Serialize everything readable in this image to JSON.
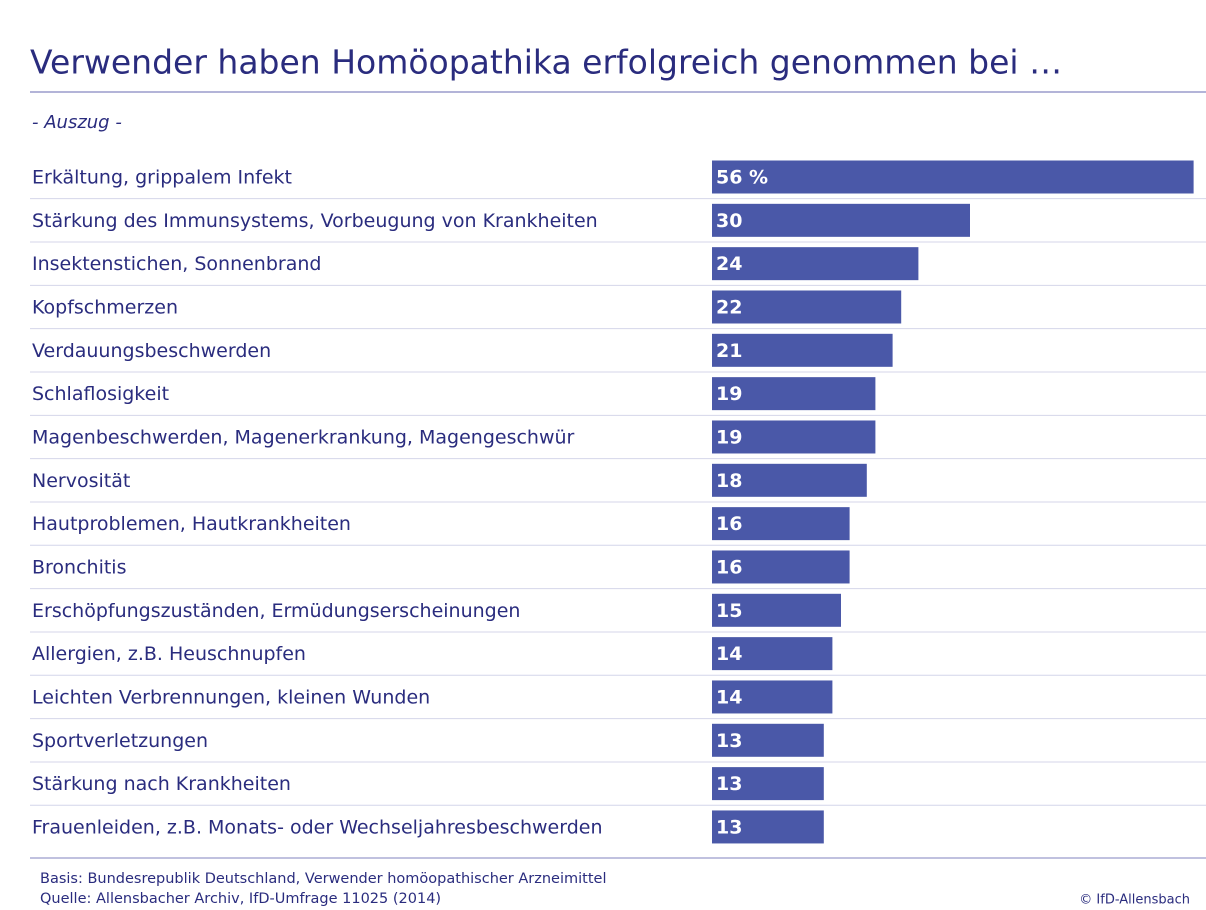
{
  "chart_data": {
    "type": "bar",
    "orientation": "horizontal",
    "title": "Verwender haben Homöopathika erfolgreich genommen bei …",
    "subtitle": "- Auszug -",
    "categories": [
      "Erkältung, grippalem Infekt",
      "Stärkung des Immunsystems, Vorbeugung von Krankheiten",
      "Insektenstichen, Sonnenbrand",
      "Kopfschmerzen",
      "Verdauungsbeschwerden",
      "Schlaflosigkeit",
      "Magenbeschwerden, Magenerkrankung, Magengeschwür",
      "Nervosität",
      "Hautproblemen, Hautkrankheiten",
      "Bronchitis",
      "Erschöpfungszuständen, Ermüdungserscheinungen",
      "Allergien, z.B. Heuschnupfen",
      "Leichten Verbrennungen, kleinen Wunden",
      "Sportverletzungen",
      "Stärkung nach Krankheiten",
      "Frauenleiden, z.B. Monats- oder Wechseljahresbeschwerden"
    ],
    "values": [
      56,
      30,
      24,
      22,
      21,
      19,
      19,
      18,
      16,
      16,
      15,
      14,
      14,
      13,
      13,
      13
    ],
    "value_labels": [
      "56 %",
      "30",
      "24",
      "22",
      "21",
      "19",
      "19",
      "18",
      "16",
      "16",
      "15",
      "14",
      "14",
      "13",
      "13",
      "13"
    ],
    "color": "#4a58a8",
    "basis": "Basis: Bundesrepublik Deutschland, Verwender homöopathischer Arzneimittel",
    "source": "Quelle: Allensbacher Archiv, IfD-Umfrage 11025 (2014)",
    "credit": "© IfD-Allensbach"
  }
}
